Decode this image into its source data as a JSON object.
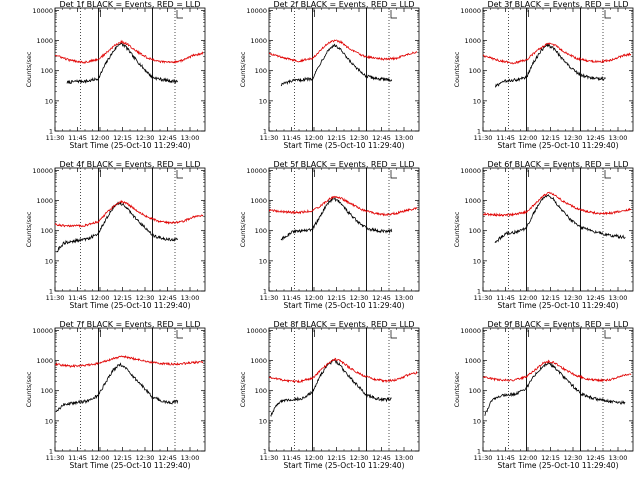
{
  "chart_data": [
    {
      "type": "line",
      "title": "Det 1f BLACK = Events, RED = LLD",
      "xlabel": "Start Time (25-Oct-10 11:29:40)",
      "ylabel": "Counts/sec",
      "yscale": "log",
      "ylim": [
        1,
        12000
      ],
      "xlim": [
        "11:30",
        "13:10"
      ],
      "x_ticks": [
        "11:30",
        "11:45",
        "12:00",
        "12:15",
        "12:30",
        "12:45",
        "13:00"
      ],
      "y_ticks": [
        "1",
        "10",
        "100",
        "1000",
        "10000"
      ],
      "solid_vlines": [
        "11:59",
        "12:35"
      ],
      "dotted_vlines": [
        "11:47",
        "12:50"
      ],
      "series": [
        {
          "color": "#000000",
          "x": [
            "11:38",
            "11:45",
            "11:52",
            "11:59",
            "12:04",
            "12:09",
            "12:13",
            "12:17",
            "12:22",
            "12:29",
            "12:35",
            "12:42",
            "12:48",
            "12:52"
          ],
          "values": [
            40,
            45,
            45,
            55,
            180,
            450,
            800,
            650,
            300,
            120,
            60,
            50,
            45,
            45
          ]
        },
        {
          "color": "#e00000",
          "x": [
            "11:30",
            "11:40",
            "11:50",
            "11:59",
            "12:05",
            "12:10",
            "12:14",
            "12:18",
            "12:24",
            "12:32",
            "12:40",
            "12:48",
            "12:55",
            "13:02",
            "13:09"
          ],
          "values": [
            330,
            220,
            190,
            240,
            420,
            700,
            900,
            780,
            450,
            260,
            200,
            190,
            220,
            320,
            380
          ]
        }
      ]
    },
    {
      "type": "line",
      "title": "Det 2f BLACK = Events, RED = LLD",
      "xlabel": "Start Time (25-Oct-10 11:29:40)",
      "ylabel": "Counts/sec",
      "yscale": "log",
      "ylim": [
        1,
        12000
      ],
      "xlim": [
        "11:30",
        "13:10"
      ],
      "x_ticks": [
        "11:30",
        "11:45",
        "12:00",
        "12:15",
        "12:30",
        "12:45",
        "13:00"
      ],
      "y_ticks": [
        "1",
        "10",
        "100",
        "1000",
        "10000"
      ],
      "solid_vlines": [
        "11:59",
        "12:35"
      ],
      "dotted_vlines": [
        "11:47",
        "12:50"
      ],
      "series": [
        {
          "color": "#000000",
          "x": [
            "11:38",
            "11:45",
            "11:52",
            "11:59",
            "12:04",
            "12:09",
            "12:13",
            "12:17",
            "12:22",
            "12:29",
            "12:35",
            "12:42",
            "12:48",
            "12:52"
          ],
          "values": [
            35,
            45,
            50,
            55,
            170,
            450,
            700,
            550,
            260,
            110,
            65,
            55,
            50,
            50
          ]
        },
        {
          "color": "#e00000",
          "x": [
            "11:30",
            "11:40",
            "11:50",
            "11:59",
            "12:05",
            "12:10",
            "12:14",
            "12:18",
            "12:24",
            "12:32",
            "12:40",
            "12:48",
            "12:55",
            "13:02",
            "13:09"
          ],
          "values": [
            380,
            260,
            210,
            260,
            520,
            850,
            1000,
            880,
            520,
            320,
            260,
            240,
            260,
            340,
            420
          ]
        }
      ]
    },
    {
      "type": "line",
      "title": "Det 3f BLACK = Events, RED = LLD",
      "xlabel": "Start Time (25-Oct-10 11:29:40)",
      "ylabel": "Counts/sec",
      "yscale": "log",
      "ylim": [
        1,
        12000
      ],
      "xlim": [
        "11:30",
        "13:10"
      ],
      "x_ticks": [
        "11:30",
        "11:45",
        "12:00",
        "12:15",
        "12:30",
        "12:45",
        "13:00"
      ],
      "y_ticks": [
        "1",
        "10",
        "100",
        "1000",
        "10000"
      ],
      "solid_vlines": [
        "11:59",
        "12:35"
      ],
      "dotted_vlines": [
        "11:47",
        "12:50"
      ],
      "series": [
        {
          "color": "#000000",
          "x": [
            "11:38",
            "11:45",
            "11:52",
            "11:59",
            "12:04",
            "12:09",
            "12:13",
            "12:17",
            "12:22",
            "12:29",
            "12:35",
            "12:42",
            "12:48",
            "12:52"
          ],
          "values": [
            30,
            45,
            50,
            60,
            200,
            480,
            700,
            560,
            280,
            120,
            70,
            60,
            55,
            55
          ]
        },
        {
          "color": "#e00000",
          "x": [
            "11:30",
            "11:40",
            "11:50",
            "11:59",
            "12:05",
            "12:10",
            "12:14",
            "12:18",
            "12:24",
            "12:32",
            "12:40",
            "12:48",
            "12:55",
            "13:02",
            "13:09"
          ],
          "values": [
            320,
            220,
            180,
            230,
            420,
            650,
            800,
            700,
            420,
            260,
            210,
            200,
            220,
            300,
            360
          ]
        }
      ]
    },
    {
      "type": "line",
      "title": "Det 4f BLACK = Events, RED = LLD",
      "xlabel": "Start Time (25-Oct-10 11:29:40)",
      "ylabel": "Counts/sec",
      "yscale": "log",
      "ylim": [
        1,
        12000
      ],
      "xlim": [
        "11:30",
        "13:10"
      ],
      "x_ticks": [
        "11:30",
        "11:45",
        "12:00",
        "12:15",
        "12:30",
        "12:45",
        "13:00"
      ],
      "y_ticks": [
        "1",
        "10",
        "100",
        "1000",
        "10000"
      ],
      "solid_vlines": [
        "11:59",
        "12:35"
      ],
      "dotted_vlines": [
        "11:47",
        "12:50"
      ],
      "series": [
        {
          "color": "#000000",
          "x": [
            "11:31",
            "11:36",
            "11:43",
            "11:52",
            "11:59",
            "12:04",
            "12:09",
            "12:13",
            "12:17",
            "12:22",
            "12:29",
            "12:35",
            "12:42",
            "12:48",
            "12:52"
          ],
          "values": [
            20,
            40,
            45,
            55,
            80,
            250,
            600,
            850,
            650,
            320,
            140,
            70,
            55,
            50,
            55
          ]
        },
        {
          "color": "#e00000",
          "x": [
            "11:30",
            "11:40",
            "11:50",
            "11:59",
            "12:05",
            "12:10",
            "12:14",
            "12:18",
            "12:24",
            "12:32",
            "12:40",
            "12:48",
            "12:55",
            "13:02",
            "13:09"
          ],
          "values": [
            160,
            140,
            150,
            200,
            420,
            700,
            950,
            800,
            480,
            280,
            200,
            180,
            200,
            280,
            340
          ]
        }
      ]
    },
    {
      "type": "line",
      "title": "Det 5f BLACK = Events, RED = LLD",
      "xlabel": "Start Time (25-Oct-10 11:29:40)",
      "ylabel": "Counts/sec",
      "yscale": "log",
      "ylim": [
        1,
        12000
      ],
      "xlim": [
        "11:30",
        "13:10"
      ],
      "x_ticks": [
        "11:30",
        "11:45",
        "12:00",
        "12:15",
        "12:30",
        "12:45",
        "13:00"
      ],
      "y_ticks": [
        "1",
        "10",
        "100",
        "1000",
        "10000"
      ],
      "solid_vlines": [
        "11:59",
        "12:35"
      ],
      "dotted_vlines": [
        "11:47",
        "12:50"
      ],
      "series": [
        {
          "color": "#000000",
          "x": [
            "11:38",
            "11:45",
            "11:52",
            "11:59",
            "12:04",
            "12:09",
            "12:13",
            "12:17",
            "12:22",
            "12:29",
            "12:35",
            "12:42",
            "12:48",
            "12:52"
          ],
          "values": [
            50,
            90,
            100,
            110,
            300,
            800,
            1200,
            900,
            450,
            200,
            120,
            100,
            95,
            100
          ]
        },
        {
          "color": "#e00000",
          "x": [
            "11:30",
            "11:40",
            "11:50",
            "11:59",
            "12:05",
            "12:10",
            "12:14",
            "12:18",
            "12:24",
            "12:32",
            "12:40",
            "12:48",
            "12:55",
            "13:02",
            "13:09"
          ],
          "values": [
            480,
            420,
            400,
            460,
            700,
            1100,
            1400,
            1200,
            800,
            500,
            380,
            340,
            380,
            480,
            560
          ]
        }
      ]
    },
    {
      "type": "line",
      "title": "Det 6f BLACK = Events, RED = LLD",
      "xlabel": "Start Time (25-Oct-10 11:29:40)",
      "ylabel": "Counts/sec",
      "yscale": "log",
      "ylim": [
        1,
        12000
      ],
      "xlim": [
        "11:30",
        "13:10"
      ],
      "x_ticks": [
        "11:30",
        "11:45",
        "12:00",
        "12:15",
        "12:30",
        "12:45",
        "13:00"
      ],
      "y_ticks": [
        "1",
        "10",
        "100",
        "1000",
        "10000"
      ],
      "solid_vlines": [
        "11:59",
        "12:35"
      ],
      "dotted_vlines": [
        "11:47",
        "12:50"
      ],
      "series": [
        {
          "color": "#000000",
          "x": [
            "11:38",
            "11:45",
            "11:52",
            "11:59",
            "12:04",
            "12:09",
            "12:13",
            "12:17",
            "12:22",
            "12:29",
            "12:35",
            "12:42",
            "12:48",
            "12:52",
            "13:00",
            "13:05"
          ],
          "values": [
            40,
            80,
            90,
            120,
            400,
            1000,
            1500,
            1100,
            500,
            220,
            130,
            100,
            85,
            75,
            65,
            60
          ]
        },
        {
          "color": "#e00000",
          "x": [
            "11:30",
            "11:40",
            "11:50",
            "11:59",
            "12:05",
            "12:10",
            "12:14",
            "12:18",
            "12:24",
            "12:32",
            "12:40",
            "12:48",
            "12:55",
            "13:02",
            "13:09"
          ],
          "values": [
            360,
            330,
            340,
            420,
            800,
            1400,
            1800,
            1500,
            900,
            560,
            420,
            370,
            380,
            450,
            520
          ]
        }
      ]
    },
    {
      "type": "line",
      "title": "Det 7f BLACK = Events, RED = LLD",
      "xlabel": "Start Time (25-Oct-10 11:29:40)",
      "ylabel": "Counts/sec",
      "yscale": "log",
      "ylim": [
        1,
        12000
      ],
      "xlim": [
        "11:30",
        "13:10"
      ],
      "x_ticks": [
        "11:30",
        "11:45",
        "12:00",
        "12:15",
        "12:30",
        "12:45",
        "13:00"
      ],
      "y_ticks": [
        "1",
        "10",
        "100",
        "1000",
        "10000"
      ],
      "solid_vlines": [
        "11:59",
        "12:35"
      ],
      "dotted_vlines": [
        "11:47",
        "12:50"
      ],
      "series": [
        {
          "color": "#000000",
          "x": [
            "11:31",
            "11:36",
            "11:43",
            "11:52",
            "11:59",
            "12:04",
            "12:09",
            "12:13",
            "12:17",
            "12:22",
            "12:29",
            "12:35",
            "12:42",
            "12:48",
            "12:52"
          ],
          "values": [
            20,
            35,
            40,
            45,
            70,
            200,
            500,
            750,
            600,
            300,
            130,
            60,
            45,
            40,
            45
          ]
        },
        {
          "color": "#e00000",
          "x": [
            "11:30",
            "11:40",
            "11:50",
            "11:59",
            "12:05",
            "12:10",
            "12:14",
            "12:18",
            "12:24",
            "12:32",
            "12:40",
            "12:48",
            "12:55",
            "13:02",
            "13:09"
          ],
          "values": [
            750,
            650,
            680,
            800,
            1000,
            1200,
            1400,
            1300,
            1100,
            900,
            800,
            760,
            780,
            860,
            900
          ]
        }
      ]
    },
    {
      "type": "line",
      "title": "Det 8f BLACK = Events, RED = LLD",
      "xlabel": "Start Time (25-Oct-10 11:29:40)",
      "ylabel": "Counts/sec",
      "yscale": "log",
      "ylim": [
        1,
        12000
      ],
      "xlim": [
        "11:30",
        "13:10"
      ],
      "x_ticks": [
        "11:30",
        "11:45",
        "12:00",
        "12:15",
        "12:30",
        "12:45",
        "13:00"
      ],
      "y_ticks": [
        "1",
        "10",
        "100",
        "1000",
        "10000"
      ],
      "solid_vlines": [
        "11:59",
        "12:35"
      ],
      "dotted_vlines": [
        "11:47",
        "12:50"
      ],
      "series": [
        {
          "color": "#000000",
          "x": [
            "11:31",
            "11:36",
            "11:43",
            "11:52",
            "11:59",
            "12:04",
            "12:09",
            "12:13",
            "12:17",
            "12:22",
            "12:29",
            "12:35",
            "12:42",
            "12:48",
            "12:52"
          ],
          "values": [
            15,
            40,
            50,
            55,
            90,
            300,
            700,
            1000,
            750,
            350,
            150,
            70,
            55,
            50,
            55
          ]
        },
        {
          "color": "#e00000",
          "x": [
            "11:30",
            "11:40",
            "11:50",
            "11:59",
            "12:05",
            "12:10",
            "12:14",
            "12:18",
            "12:24",
            "12:32",
            "12:40",
            "12:48",
            "12:55",
            "13:02",
            "13:09"
          ],
          "values": [
            280,
            220,
            200,
            260,
            500,
            850,
            1100,
            950,
            560,
            330,
            240,
            210,
            230,
            320,
            400
          ]
        }
      ]
    },
    {
      "type": "line",
      "title": "Det 9f BLACK = Events, RED = LLD",
      "xlabel": "Start Time (25-Oct-10 11:29:40)",
      "ylabel": "Counts/sec",
      "yscale": "log",
      "ylim": [
        1,
        12000
      ],
      "xlim": [
        "11:30",
        "13:10"
      ],
      "x_ticks": [
        "11:30",
        "11:45",
        "12:00",
        "12:15",
        "12:30",
        "12:45",
        "13:00"
      ],
      "y_ticks": [
        "1",
        "10",
        "100",
        "1000",
        "10000"
      ],
      "solid_vlines": [
        "11:59",
        "12:35"
      ],
      "dotted_vlines": [
        "11:47",
        "12:50"
      ],
      "series": [
        {
          "color": "#000000",
          "x": [
            "11:31",
            "11:36",
            "11:43",
            "11:52",
            "11:59",
            "12:04",
            "12:09",
            "12:13",
            "12:17",
            "12:22",
            "12:29",
            "12:35",
            "12:42",
            "12:48",
            "12:52",
            "13:00",
            "13:05"
          ],
          "values": [
            15,
            50,
            70,
            80,
            120,
            300,
            600,
            800,
            650,
            350,
            160,
            80,
            60,
            50,
            45,
            40,
            40
          ]
        },
        {
          "color": "#e00000",
          "x": [
            "11:30",
            "11:40",
            "11:50",
            "11:59",
            "12:05",
            "12:10",
            "12:14",
            "12:18",
            "12:24",
            "12:32",
            "12:40",
            "12:48",
            "12:55",
            "13:02",
            "13:09"
          ],
          "values": [
            280,
            230,
            220,
            290,
            500,
            800,
            950,
            830,
            520,
            320,
            240,
            220,
            230,
            300,
            360
          ]
        }
      ]
    }
  ]
}
